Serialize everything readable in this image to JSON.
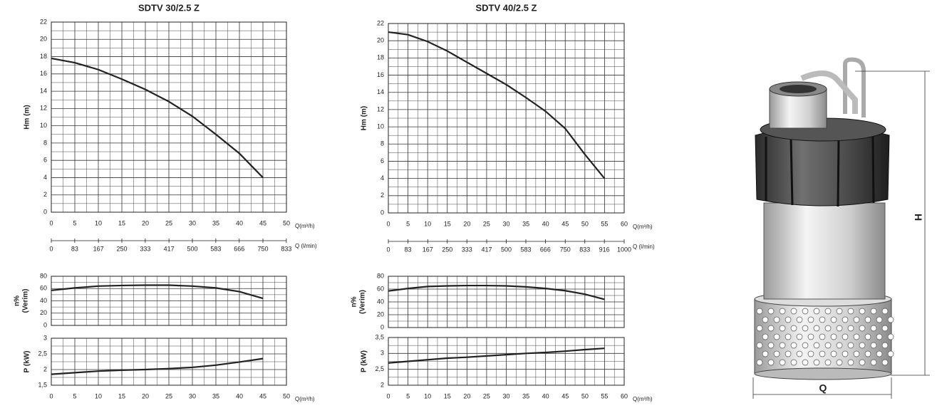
{
  "chart_data": [
    {
      "type": "line",
      "title": "SDTV 30/2.5 Z",
      "ylabel": "Hm (m)",
      "xlabel": "Q(m³/h)",
      "x": [
        0,
        5,
        10,
        15,
        20,
        25,
        30,
        35,
        40,
        45
      ],
      "values": [
        17.8,
        17.3,
        16.5,
        15.4,
        14.2,
        12.8,
        11.1,
        9,
        6.8,
        4
      ],
      "color": "#222222",
      "xlim": [
        0,
        50
      ],
      "xticks": [
        0,
        5,
        10,
        15,
        20,
        25,
        30,
        35,
        40,
        45,
        50
      ],
      "ylim": [
        0,
        22
      ],
      "yticks": [
        0,
        2,
        4,
        6,
        8,
        10,
        12,
        14,
        16,
        18,
        20,
        22
      ],
      "grid": true,
      "minor_grid": true,
      "x2label": "Q (l/min)",
      "x2lim": [
        0,
        833.33
      ],
      "x2ticks": [
        0,
        83,
        167,
        250,
        333,
        417,
        500,
        583,
        666,
        750,
        833
      ]
    },
    {
      "type": "line",
      "ylabel": [
        "n%",
        "(Verim)"
      ],
      "x": [
        0,
        5,
        10,
        15,
        20,
        25,
        30,
        35,
        40,
        45
      ],
      "values": [
        57,
        61,
        64,
        65,
        65.5,
        65.5,
        64,
        61,
        55,
        44
      ],
      "color": "#222222",
      "xlim": [
        0,
        50
      ],
      "xticks": [
        0,
        5,
        10,
        15,
        20,
        25,
        30,
        35,
        40,
        45,
        50
      ],
      "show_xtick_labels": false,
      "ylim": [
        0,
        80
      ],
      "yticks": [
        0,
        20,
        40,
        60,
        80
      ],
      "grid": true,
      "minor_grid": true
    },
    {
      "type": "line",
      "ylabel": "P (kW)",
      "xlabel": "Q(m³/h)",
      "x": [
        0,
        5,
        10,
        15,
        20,
        25,
        30,
        35,
        40,
        45
      ],
      "values": [
        1.85,
        1.9,
        1.95,
        1.98,
        2.0,
        2.03,
        2.07,
        2.14,
        2.24,
        2.35
      ],
      "color": "#222222",
      "xlim": [
        0,
        50
      ],
      "xticks": [
        0,
        5,
        10,
        15,
        20,
        25,
        30,
        35,
        40,
        45,
        50
      ],
      "ylim": [
        1.5,
        3
      ],
      "yticks": [
        {
          "value": 1.5,
          "label": "1,5"
        },
        2,
        {
          "value": 2.5,
          "label": "2,5"
        },
        3
      ],
      "grid": true,
      "minor_grid": true
    },
    {
      "type": "line",
      "title": "SDTV 40/2.5 Z",
      "ylabel": "Hm (m)",
      "xlabel": "Q(m³/h)",
      "x": [
        0,
        5,
        10,
        15,
        20,
        25,
        30,
        35,
        40,
        45,
        50,
        55
      ],
      "values": [
        21,
        20.7,
        19.9,
        18.8,
        17.5,
        16.2,
        14.9,
        13.4,
        11.8,
        9.8,
        6.8,
        4
      ],
      "color": "#222222",
      "xlim": [
        0,
        60
      ],
      "xticks": [
        0,
        5,
        10,
        15,
        20,
        25,
        30,
        35,
        40,
        45,
        50,
        55,
        60
      ],
      "ylim": [
        0,
        22
      ],
      "yticks": [
        0,
        2,
        4,
        6,
        8,
        10,
        12,
        14,
        16,
        18,
        20,
        22
      ],
      "grid": true,
      "minor_grid": true,
      "x2label": "Q (l/min)",
      "x2lim": [
        0,
        1000
      ],
      "x2ticks": [
        0,
        83,
        167,
        250,
        333,
        417,
        500,
        583,
        666,
        750,
        833,
        916,
        1000
      ]
    },
    {
      "type": "line",
      "ylabel": [
        "n%",
        "(Verim)"
      ],
      "x": [
        0,
        5,
        10,
        15,
        20,
        25,
        30,
        35,
        40,
        45,
        50,
        55
      ],
      "values": [
        57,
        61,
        64,
        65,
        65.5,
        65.5,
        65,
        63.5,
        61,
        57.5,
        52,
        44
      ],
      "color": "#222222",
      "xlim": [
        0,
        60
      ],
      "xticks": [
        0,
        5,
        10,
        15,
        20,
        25,
        30,
        35,
        40,
        45,
        50,
        55,
        60
      ],
      "show_xtick_labels": false,
      "ylim": [
        0,
        80
      ],
      "yticks": [
        0,
        20,
        40,
        60,
        80
      ],
      "grid": true,
      "minor_grid": true
    },
    {
      "type": "line",
      "ylabel": "P (kW)",
      "xlabel": "Q(m³/h)",
      "x": [
        0,
        5,
        10,
        15,
        20,
        25,
        30,
        35,
        40,
        45,
        50,
        55
      ],
      "values": [
        2.7,
        2.75,
        2.8,
        2.85,
        2.88,
        2.92,
        2.96,
        3.0,
        3.03,
        3.07,
        3.12,
        3.16
      ],
      "color": "#222222",
      "xlim": [
        0,
        60
      ],
      "xticks": [
        0,
        5,
        10,
        15,
        20,
        25,
        30,
        35,
        40,
        45,
        50,
        55,
        60
      ],
      "ylim": [
        2,
        3.5
      ],
      "yticks": [
        2,
        {
          "value": 2.5,
          "label": "2,5"
        },
        3,
        {
          "value": 3.5,
          "label": "3,5"
        }
      ],
      "grid": true,
      "minor_grid": true
    }
  ],
  "drawing": {
    "height_label": "H",
    "width_label": "Q"
  }
}
